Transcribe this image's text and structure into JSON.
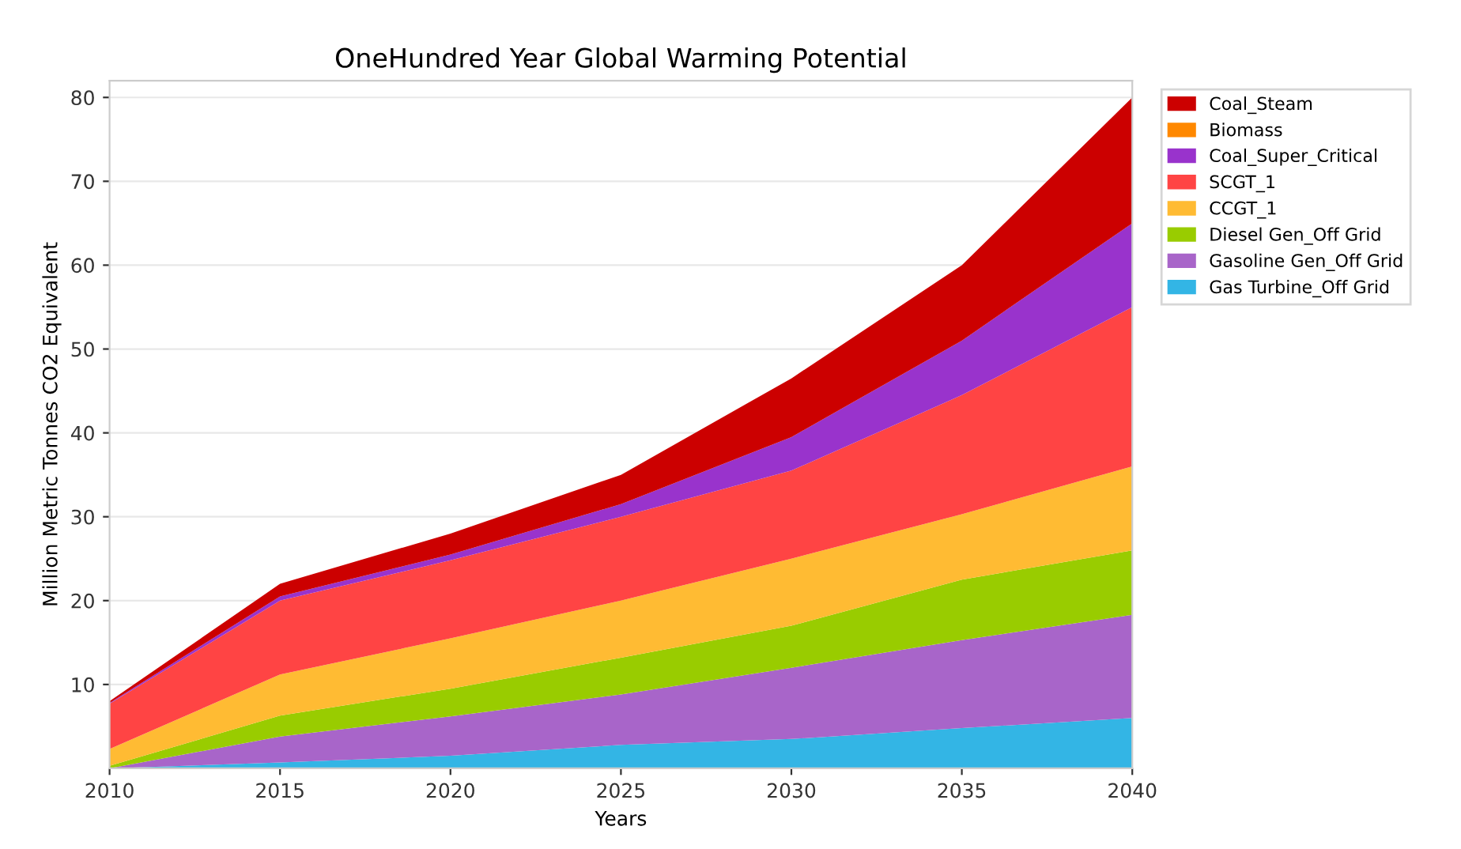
{
  "chart_data": {
    "type": "area",
    "stacked": true,
    "title": "OneHundred Year Global Warming Potential",
    "xlabel": "Years",
    "ylabel": "Million Metric Tonnes CO2 Equivalent",
    "x": [
      2010,
      2015,
      2020,
      2025,
      2030,
      2035,
      2040
    ],
    "xlim": [
      2010,
      2040
    ],
    "xticks": [
      2010,
      2015,
      2020,
      2025,
      2030,
      2035,
      2040
    ],
    "ylim": [
      0,
      82
    ],
    "yticks": [
      10,
      20,
      30,
      40,
      50,
      60,
      70,
      80
    ],
    "grid": "y",
    "legend": "right",
    "series": [
      {
        "name": "Gas Turbine_Off Grid",
        "color": "#33b5e5",
        "values": [
          0,
          0.7,
          1.5,
          2.8,
          3.5,
          4.8,
          6
        ]
      },
      {
        "name": "Gasoline Gen_Off Grid",
        "color": "#a865c9",
        "values": [
          0,
          3.1,
          4.7,
          6,
          8.5,
          10.5,
          12.3
        ]
      },
      {
        "name": "Diesel Gen_Off Grid",
        "color": "#99cc00",
        "values": [
          0.3,
          2.5,
          3.3,
          4.4,
          5,
          7.2,
          7.7
        ]
      },
      {
        "name": "CCGT_1",
        "color": "#ffbb33",
        "values": [
          2,
          4.9,
          6,
          6.8,
          8,
          7.8,
          10
        ]
      },
      {
        "name": "SCGT_1",
        "color": "#ff4444",
        "values": [
          5.4,
          8.8,
          9.3,
          10,
          10.5,
          14.2,
          19
        ]
      },
      {
        "name": "Coal_Super_Critical",
        "color": "#9933cc",
        "values": [
          0.1,
          0.5,
          0.7,
          1.5,
          4,
          6.5,
          10
        ]
      },
      {
        "name": "Biomass",
        "color": "#ff8800",
        "values": [
          null,
          null,
          null,
          null,
          null,
          null,
          null
        ]
      },
      {
        "name": "Coal_Steam",
        "color": "#cc0000",
        "values": [
          0.2,
          1.5,
          2.5,
          3.5,
          7,
          9,
          15
        ]
      }
    ]
  }
}
